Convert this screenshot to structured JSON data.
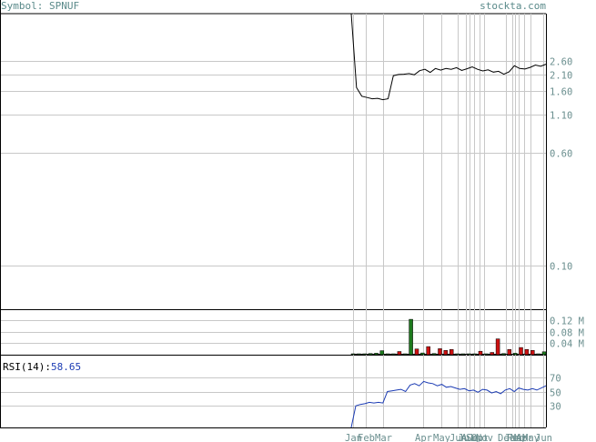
{
  "header": {
    "symbol_text": "Symbol: SPNUF",
    "site": "stockta.com"
  },
  "rsi_label": {
    "name": "RSI(14):",
    "value": "58.65"
  },
  "colors": {
    "price_line": "#000000",
    "rsi_line": "#1c3cb4",
    "volume_up": "#1e7a1e",
    "volume_down": "#cc1111",
    "grid": "#c8c8c8",
    "axis_text": "#6b8f8f"
  },
  "chart_data": [
    {
      "type": "line",
      "panel": "price",
      "scale": "log",
      "yticks": [
        {
          "value": 2.6,
          "label": "2.60"
        },
        {
          "value": 2.1,
          "label": "2.10"
        },
        {
          "value": 1.6,
          "label": "1.60"
        },
        {
          "value": 1.1,
          "label": "1.10"
        },
        {
          "value": 0.6,
          "label": "0.60"
        },
        {
          "value": 0.1,
          "label": "0.10"
        }
      ],
      "ylim": [
        0.05,
        5.5
      ],
      "months": [
        "Jan",
        "Feb",
        "Mar",
        "Apr",
        "May",
        "Jun",
        "Jul",
        "Aug",
        "Sep",
        "Oct",
        "Nov",
        "Dec",
        "Jan",
        "Feb",
        "Mar",
        "Apr",
        "May",
        "Jun"
      ],
      "series": [
        {
          "values": [
            5.5,
            1.7,
            1.48,
            1.45,
            1.42,
            1.43,
            1.4,
            1.42,
            2.05,
            2.09,
            2.1,
            2.12,
            2.08,
            2.22,
            2.27,
            2.16,
            2.3,
            2.24,
            2.3,
            2.27,
            2.33,
            2.23,
            2.29,
            2.36,
            2.27,
            2.21,
            2.25,
            2.17,
            2.2,
            2.1,
            2.18,
            2.4,
            2.3,
            2.28,
            2.34,
            2.43,
            2.38,
            2.46
          ]
        }
      ]
    },
    {
      "type": "bar",
      "panel": "volume",
      "unit": "M",
      "yticks": [
        {
          "value": 0.12,
          "label": "0.12 M"
        },
        {
          "value": 0.08,
          "label": "0.08 M"
        },
        {
          "value": 0.04,
          "label": "0.04 M"
        }
      ],
      "ylim": [
        0,
        0.155
      ],
      "bars": [
        {
          "value": 0.003,
          "dir": "up"
        },
        {
          "value": 0.002,
          "dir": "up"
        },
        {
          "value": 0.002,
          "dir": "up"
        },
        {
          "value": 0.004,
          "dir": "up"
        },
        {
          "value": 0.005,
          "dir": "up"
        },
        {
          "value": 0.014,
          "dir": "up"
        },
        {
          "value": 0.003,
          "dir": "up"
        },
        {
          "value": 0.002,
          "dir": "up"
        },
        {
          "value": 0.011,
          "dir": "down"
        },
        {
          "value": 0.002,
          "dir": "up"
        },
        {
          "value": 0.123,
          "dir": "up"
        },
        {
          "value": 0.02,
          "dir": "down"
        },
        {
          "value": 0.006,
          "dir": "up"
        },
        {
          "value": 0.028,
          "dir": "down"
        },
        {
          "value": 0.004,
          "dir": "up"
        },
        {
          "value": 0.021,
          "dir": "down"
        },
        {
          "value": 0.015,
          "dir": "down"
        },
        {
          "value": 0.018,
          "dir": "down"
        },
        {
          "value": 0.002,
          "dir": "up"
        },
        {
          "value": 0.002,
          "dir": "up"
        },
        {
          "value": 0.002,
          "dir": "up"
        },
        {
          "value": 0.002,
          "dir": "up"
        },
        {
          "value": 0.012,
          "dir": "down"
        },
        {
          "value": 0.003,
          "dir": "up"
        },
        {
          "value": 0.008,
          "dir": "down"
        },
        {
          "value": 0.055,
          "dir": "down"
        },
        {
          "value": 0.004,
          "dir": "up"
        },
        {
          "value": 0.018,
          "dir": "down"
        },
        {
          "value": 0.005,
          "dir": "up"
        },
        {
          "value": 0.025,
          "dir": "down"
        },
        {
          "value": 0.018,
          "dir": "down"
        },
        {
          "value": 0.015,
          "dir": "down"
        },
        {
          "value": 0.002,
          "dir": "up"
        },
        {
          "value": 0.01,
          "dir": "up"
        }
      ]
    },
    {
      "type": "line",
      "panel": "rsi",
      "yticks": [
        {
          "value": 70,
          "label": "70"
        },
        {
          "value": 50,
          "label": "50"
        },
        {
          "value": 30,
          "label": "30"
        }
      ],
      "ylim": [
        0,
        100
      ],
      "series": [
        {
          "values": [
            0,
            30,
            32,
            33,
            35,
            34,
            35,
            34,
            50,
            51,
            52,
            53,
            50,
            59,
            61,
            58,
            64,
            62,
            61,
            58,
            60,
            56,
            57,
            55,
            53,
            54,
            51,
            52,
            49,
            53,
            52,
            48,
            50,
            47,
            52,
            54,
            50,
            55,
            53,
            52,
            54,
            52,
            55,
            58
          ]
        }
      ]
    }
  ]
}
